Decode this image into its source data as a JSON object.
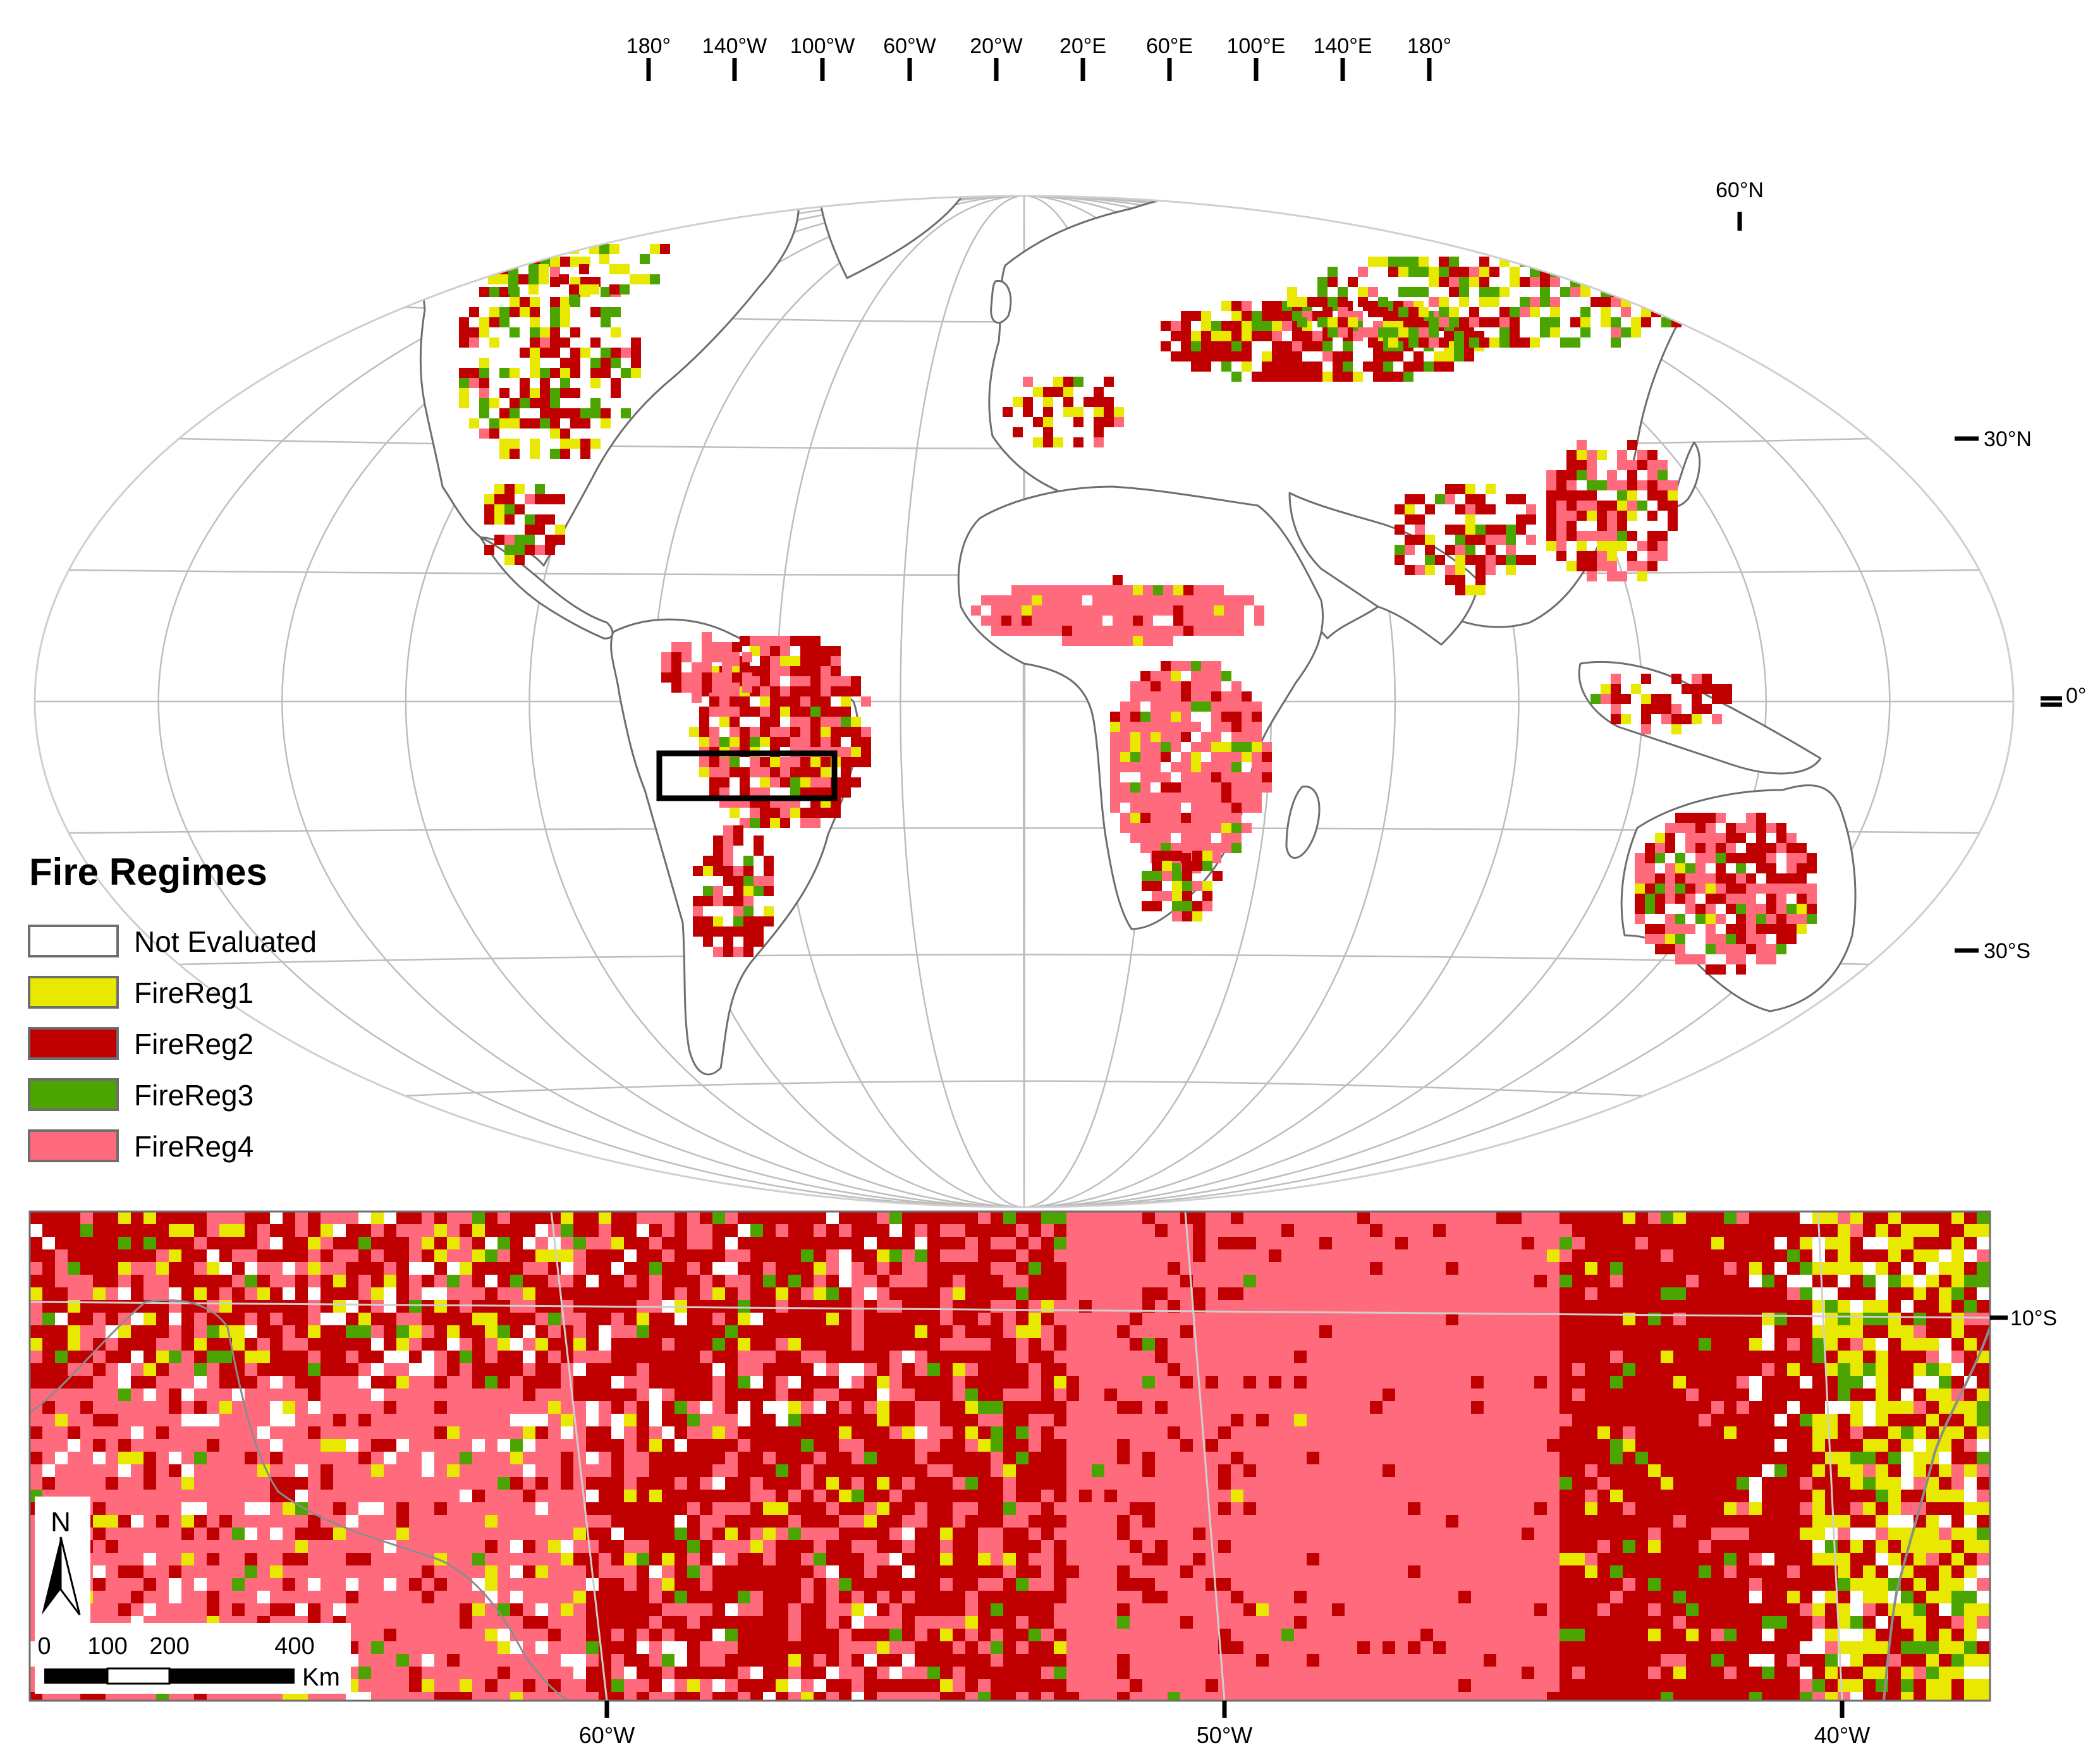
{
  "colors": {
    "not_evaluated": "#ffffff",
    "fire_reg1": "#e8e800",
    "fire_reg2": "#c00000",
    "fire_reg3": "#4ca400",
    "fire_reg4": "#ff6b7c",
    "coast": "#6e6e6e",
    "graticule": "#bdbdbd"
  },
  "world_map": {
    "longitude_labels": [
      "180°",
      "140°W",
      "100°W",
      "60°W",
      "20°W",
      "20°E",
      "60°E",
      "100°E",
      "140°E",
      "180°"
    ],
    "latitude_labels": [
      "60°N",
      "30°N",
      "0°",
      "30°S"
    ],
    "study_area_box": "Brazil, approx. 65°W–37°W, 7°S–13°S"
  },
  "legend": {
    "title": "Fire Regimes",
    "items": [
      {
        "label": "Not Evaluated",
        "color": "#ffffff"
      },
      {
        "label": "FireReg1",
        "color": "#e8e800"
      },
      {
        "label": "FireReg2",
        "color": "#c00000"
      },
      {
        "label": "FireReg3",
        "color": "#4ca400"
      },
      {
        "label": "FireReg4",
        "color": "#ff6b7c"
      }
    ]
  },
  "inset_map": {
    "longitude_labels": [
      "60°W",
      "50°W",
      "40°W"
    ],
    "latitude_labels": [
      "10°S"
    ],
    "north_arrow": "N",
    "scale_bar": {
      "ticks": [
        "0",
        "100",
        "200",
        "400"
      ],
      "unit": "Km"
    }
  }
}
